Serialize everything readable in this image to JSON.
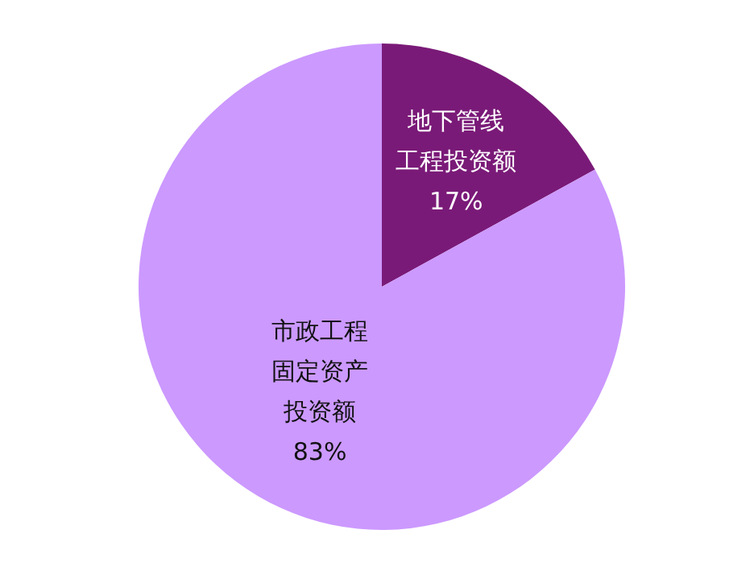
{
  "chart_data": {
    "type": "pie",
    "categories": [
      "地下管线工程投资额",
      "市政工程固定资产投资额"
    ],
    "values": [
      17,
      83
    ],
    "value_labels": [
      "17%",
      "83%"
    ],
    "colors": [
      "#7a1a78",
      "#cc99ff"
    ]
  }
}
